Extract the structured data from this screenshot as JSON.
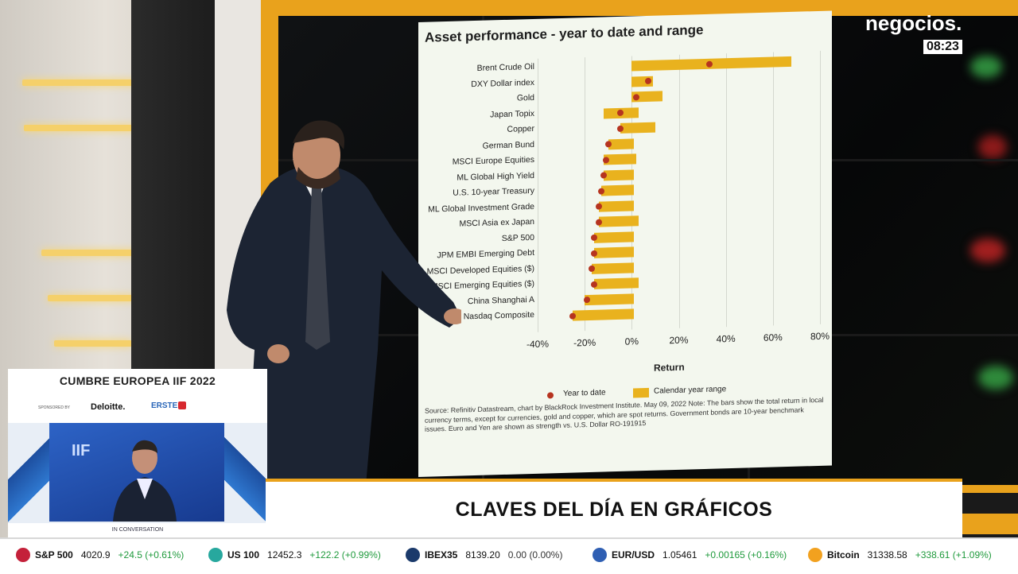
{
  "broadcast": {
    "logo": "negocios.",
    "time": "08:23"
  },
  "chart_data": {
    "type": "bar",
    "title": "Asset performance - year to date and range",
    "xlabel": "Return",
    "ylabel": "",
    "xlim": [
      -40,
      80
    ],
    "x_ticks": [
      "-40%",
      "-20%",
      "0%",
      "20%",
      "40%",
      "60%",
      "80%"
    ],
    "x_tick_values": [
      -40,
      -20,
      0,
      20,
      40,
      60,
      80
    ],
    "categories": [
      "Brent Crude Oil",
      "DXY Dollar index",
      "Gold",
      "Japan Topix",
      "Copper",
      "German Bund",
      "MSCI Europe Equities",
      "ML Global High Yield",
      "U.S. 10-year Treasury",
      "ML Global Investment Grade",
      "MSCI Asia ex Japan",
      "S&P 500",
      "JPM EMBI Emerging Debt",
      "MSCI Developed Equities ($)",
      "MSCI Emerging Equities ($)",
      "China Shanghai A",
      "Nasdaq Composite"
    ],
    "series": [
      {
        "name": "Year to date",
        "values": [
          33,
          7,
          2,
          -5,
          -5,
          -10,
          -11,
          -12,
          -13,
          -14,
          -14,
          -16,
          -16,
          -17,
          -16,
          -19,
          -25
        ]
      },
      {
        "name": "Calendar year range",
        "range_low": [
          0,
          0,
          0,
          -12,
          -5,
          -10,
          -12,
          -12,
          -13,
          -14,
          -14,
          -16,
          -16,
          -17,
          -16,
          -20,
          -25
        ],
        "range_high": [
          68,
          9,
          13,
          3,
          10,
          1,
          2,
          1,
          1,
          1,
          3,
          1,
          1,
          1,
          3,
          1,
          1
        ]
      }
    ],
    "legend": [
      "Year to date",
      "Calendar year range"
    ],
    "legend_position": "bottom",
    "note": "Source: Refinitiv Datastream, chart by BlackRock Investment Institute. May 09, 2022 Note: The bars show the total return in local currency terms, except for currencies, gold and copper, which are spot returns. Government bonds are 10-year benchmark issues. Euro and Yen are shown as strength vs. U.S. Dollar RO-191915",
    "colors": {
      "dot": "#b6341f",
      "bar": "#e9b21e"
    }
  },
  "pip": {
    "header": "CUMBRE EUROPEA IIF 2022",
    "sponsored_by": "SPONSORED BY",
    "sponsor_1": "Deloitte.",
    "sponsor_2": "ERSTE",
    "video_logo": "IIF",
    "caption": "IN CONVERSATION"
  },
  "lower_third": {
    "title": "CLAVES DEL DÍA EN GRÁFICOS"
  },
  "ticker": [
    {
      "icon": "sp500-icon",
      "color": "#c4213a",
      "name": "S&P 500",
      "value": "4020.9",
      "change": "+24.5 (+0.61%)",
      "trend": "up"
    },
    {
      "icon": "us100-icon",
      "color": "#27a89e",
      "name": "US 100",
      "value": "12452.3",
      "change": "+122.2 (+0.99%)",
      "trend": "up"
    },
    {
      "icon": "ibex-icon",
      "color": "#1b3a6b",
      "name": "IBEX35",
      "value": "8139.20",
      "change": "0.00 (0.00%)",
      "trend": "neutral"
    },
    {
      "icon": "eurusd-icon",
      "color": "#2f5fb3",
      "name": "EUR/USD",
      "value": "1.05461",
      "change": "+0.00165 (+0.16%)",
      "trend": "up"
    },
    {
      "icon": "bitcoin-icon",
      "color": "#f2a11f",
      "name": "Bitcoin",
      "value": "31338.58",
      "change": "+338.61 (+1.09%)",
      "trend": "up"
    }
  ]
}
